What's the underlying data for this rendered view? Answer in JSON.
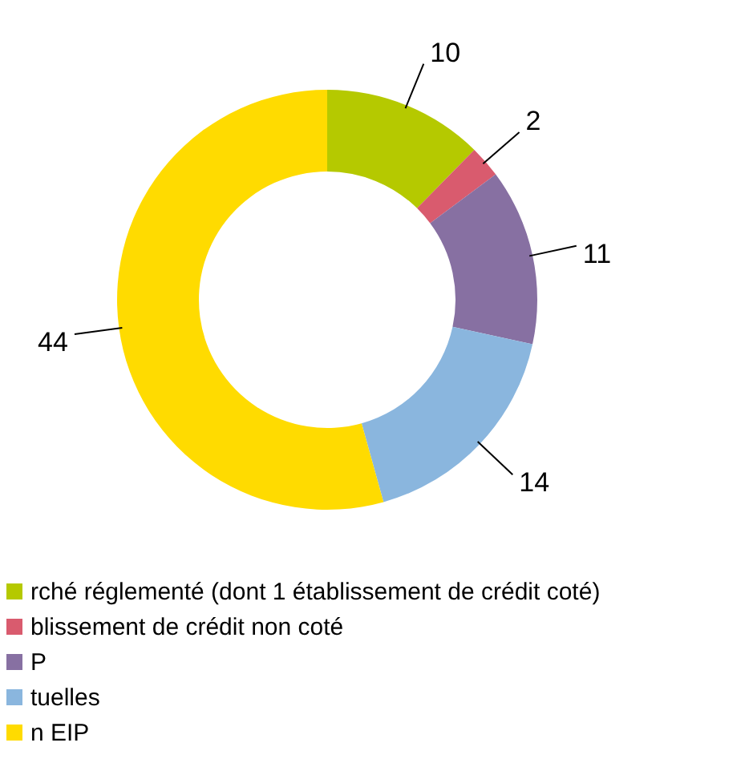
{
  "chart_data": {
    "type": "donut",
    "categories": [
      "rché réglementé (dont 1 établissement de crédit coté)",
      "blissement de crédit non coté",
      "P",
      "tuelles",
      "n EIP"
    ],
    "values": [
      10,
      2,
      11,
      14,
      44
    ],
    "colors": [
      "#b5c900",
      "#d95b6e",
      "#8770a2",
      "#8ab6de",
      "#ffdb00"
    ],
    "data_labels": true,
    "legend": "bottom"
  }
}
